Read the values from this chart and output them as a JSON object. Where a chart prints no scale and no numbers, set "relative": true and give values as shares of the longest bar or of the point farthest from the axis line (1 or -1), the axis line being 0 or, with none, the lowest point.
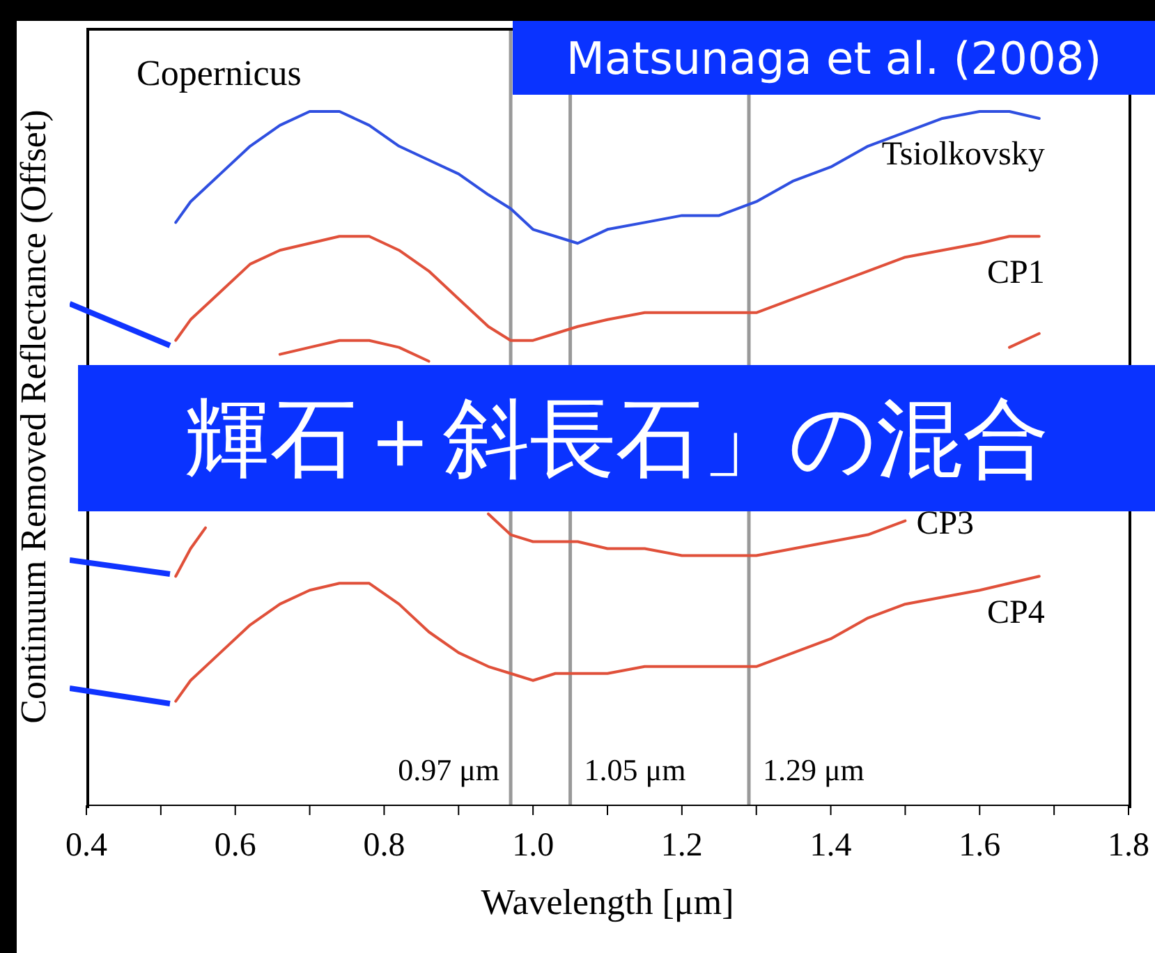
{
  "chart_data": {
    "type": "line",
    "xlabel": "Wavelength [μm]",
    "ylabel": "Continuum Removed Reflectance (Offset)",
    "relative": true,
    "legend": false,
    "grid": false,
    "line_style": "solid",
    "annotations": [
      "Copernicus",
      "Matsunaga et al. (2008)",
      "輝石＋斜長石」の混合"
    ],
    "xlim": [
      0.4,
      1.8
    ],
    "xticks": [
      0.4,
      {
        "value": 0.5,
        "label": null
      },
      0.6,
      {
        "value": 0.7,
        "label": null
      },
      0.8,
      {
        "value": 0.9,
        "label": null
      },
      {
        "value": 1,
        "label": "1.0"
      },
      {
        "value": 1.1,
        "label": null
      },
      1.2,
      {
        "value": 1.3,
        "label": null
      },
      1.4,
      {
        "value": 1.5,
        "label": null
      },
      1.6,
      {
        "value": 1.7,
        "label": null
      },
      1.8
    ],
    "x": [
      0.52,
      0.54,
      0.58,
      0.62,
      0.66,
      0.7,
      0.74,
      0.78,
      0.82,
      0.86,
      0.9,
      0.94,
      0.97,
      1.0,
      1.03,
      1.06,
      1.1,
      1.15,
      1.2,
      1.25,
      1.3,
      1.35,
      1.4,
      1.45,
      1.5,
      1.55,
      1.6,
      1.64,
      1.68
    ],
    "ref_lines": [
      {
        "axis": "x",
        "value": 0.97,
        "label": "0.97 μm",
        "color": "#999999"
      },
      {
        "axis": "x",
        "value": 1.05,
        "label": "1.05 μm",
        "color": "#999999"
      },
      {
        "axis": "x",
        "value": 1.29,
        "label": "1.29 μm",
        "color": "#999999"
      }
    ],
    "series": [
      {
        "name": "Tsiolkovsky",
        "color": "#2f4fe0",
        "values": [
          0.84,
          0.87,
          0.91,
          0.95,
          0.98,
          1.0,
          1.0,
          0.98,
          0.95,
          0.93,
          0.91,
          0.88,
          0.86,
          0.83,
          0.82,
          0.81,
          0.83,
          0.84,
          0.85,
          0.85,
          0.87,
          0.9,
          0.92,
          0.95,
          0.97,
          0.99,
          1.0,
          1.0,
          0.99
        ]
      },
      {
        "name": "CP1",
        "color": "#e0503a",
        "values": [
          0.67,
          0.7,
          0.74,
          0.78,
          0.8,
          0.81,
          0.82,
          0.82,
          0.8,
          0.77,
          0.73,
          0.69,
          0.67,
          0.67,
          0.68,
          0.69,
          0.7,
          0.71,
          0.71,
          0.71,
          0.71,
          0.73,
          0.75,
          0.77,
          0.79,
          0.8,
          0.81,
          0.82,
          0.82
        ]
      },
      {
        "color": "#e0503a",
        "x": [
          0.66,
          0.7,
          0.74,
          0.78,
          0.82,
          0.86,
          0.9,
          1.64,
          1.68
        ],
        "values": [
          0.65,
          0.66,
          0.67,
          0.67,
          0.66,
          0.64,
          null,
          0.66,
          0.68
        ]
      },
      {
        "name": "CP3",
        "color": "#e0503a",
        "x": [
          0.52,
          0.54,
          0.56,
          0.58,
          0.94,
          0.97,
          1.0,
          1.03,
          1.06,
          1.1,
          1.15,
          1.2,
          1.25,
          1.3,
          1.35,
          1.4,
          1.45,
          1.5
        ],
        "values": [
          0.33,
          0.37,
          0.4,
          null,
          0.42,
          0.39,
          0.38,
          0.38,
          0.38,
          0.37,
          0.37,
          0.36,
          0.36,
          0.36,
          0.37,
          0.38,
          0.39,
          0.41
        ]
      },
      {
        "name": "CP4",
        "color": "#e0503a",
        "values": [
          0.15,
          0.18,
          0.22,
          0.26,
          0.29,
          0.31,
          0.32,
          0.32,
          0.29,
          0.25,
          0.22,
          0.2,
          0.19,
          0.18,
          0.19,
          0.19,
          0.19,
          0.2,
          0.2,
          0.2,
          0.2,
          0.22,
          0.24,
          0.27,
          0.29,
          0.3,
          0.31,
          0.32,
          0.33
        ]
      }
    ]
  }
}
